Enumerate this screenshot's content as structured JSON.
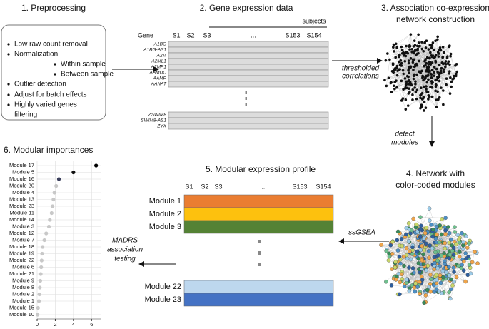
{
  "panel1": {
    "title": "1. Preprocessing",
    "items": [
      "Low raw count removal",
      "Normalization:",
      "Within sample",
      "Between sample",
      "Outlier detection",
      "Adjust for batch effects",
      "Highly varied genes",
      "filtering"
    ]
  },
  "panel2": {
    "title": "2. Gene expression data",
    "subjects": "subjects",
    "columns": [
      "Gene",
      "S1",
      "S2",
      "S3",
      "...",
      "S153",
      "S154"
    ],
    "genes_top": [
      "A1BG",
      "A1BG-AS1",
      "A2M",
      "A2ML1",
      "A2MP1",
      "AAMDC",
      "AAMP",
      "AANAT"
    ],
    "genes_bottom": [
      "ZSWIM8",
      "SWIM8-AS1",
      "ZYX"
    ]
  },
  "arrow1": [
    "thresholded",
    "correlations"
  ],
  "panel3": {
    "title": [
      "3. Association co-expression",
      "network construction"
    ]
  },
  "arrow2": [
    "detect",
    "modules"
  ],
  "panel4": {
    "title": [
      "4. Network with",
      "color-coded modules"
    ]
  },
  "arrow3": "ssGSEA",
  "panel5": {
    "title": "5. Modular expression profile",
    "columns": [
      "S1",
      "S2",
      "S3",
      "...",
      "S153",
      "S154"
    ],
    "modules_top": [
      {
        "name": "Module 1",
        "color": "#ea7d31"
      },
      {
        "name": "Module 2",
        "color": "#fdc10e"
      },
      {
        "name": "Module 3",
        "color": "#548235"
      }
    ],
    "modules_bottom": [
      {
        "name": "Module 22",
        "color": "#bdd7ee"
      },
      {
        "name": "Module 23",
        "color": "#4472c4"
      }
    ]
  },
  "arrow4": [
    "MADRS",
    "association",
    "testing"
  ],
  "chart_data": {
    "type": "dot",
    "title": "6. Modular importances",
    "categories": [
      "Module 17",
      "Module 5",
      "Module 16",
      "Module 20",
      "Module 4",
      "Module 13",
      "Module 23",
      "Module 11",
      "Module 14",
      "Module 3",
      "Module 12",
      "Module 7",
      "Module 18",
      "Module 19",
      "Module 22",
      "Module 6",
      "Module 21",
      "Module 9",
      "Module 8",
      "Module 2",
      "Module 1",
      "Module 15",
      "Module 10"
    ],
    "values": [
      6.5,
      4.0,
      2.4,
      2.1,
      1.9,
      1.8,
      1.7,
      1.6,
      1.4,
      1.3,
      1.0,
      0.8,
      0.6,
      0.55,
      0.5,
      0.45,
      0.4,
      0.35,
      0.3,
      0.25,
      0.2,
      0.1,
      0.05
    ],
    "colors": [
      "#000000",
      "#111111",
      "#3b3f5c",
      "#c8c8c8",
      "#c8c8c8",
      "#c8c8c8",
      "#c8c8c8",
      "#c8c8c8",
      "#c8c8c8",
      "#c8c8c8",
      "#c8c8c8",
      "#c8c8c8",
      "#c8c8c8",
      "#c8c8c8",
      "#c8c8c8",
      "#c8c8c8",
      "#c8c8c8",
      "#c8c8c8",
      "#c8c8c8",
      "#c8c8c8",
      "#c8c8c8",
      "#c8c8c8",
      "#c8c8c8"
    ],
    "xlim": [
      0,
      7
    ],
    "xticks": [
      0,
      2,
      4,
      6
    ],
    "grid": true
  }
}
